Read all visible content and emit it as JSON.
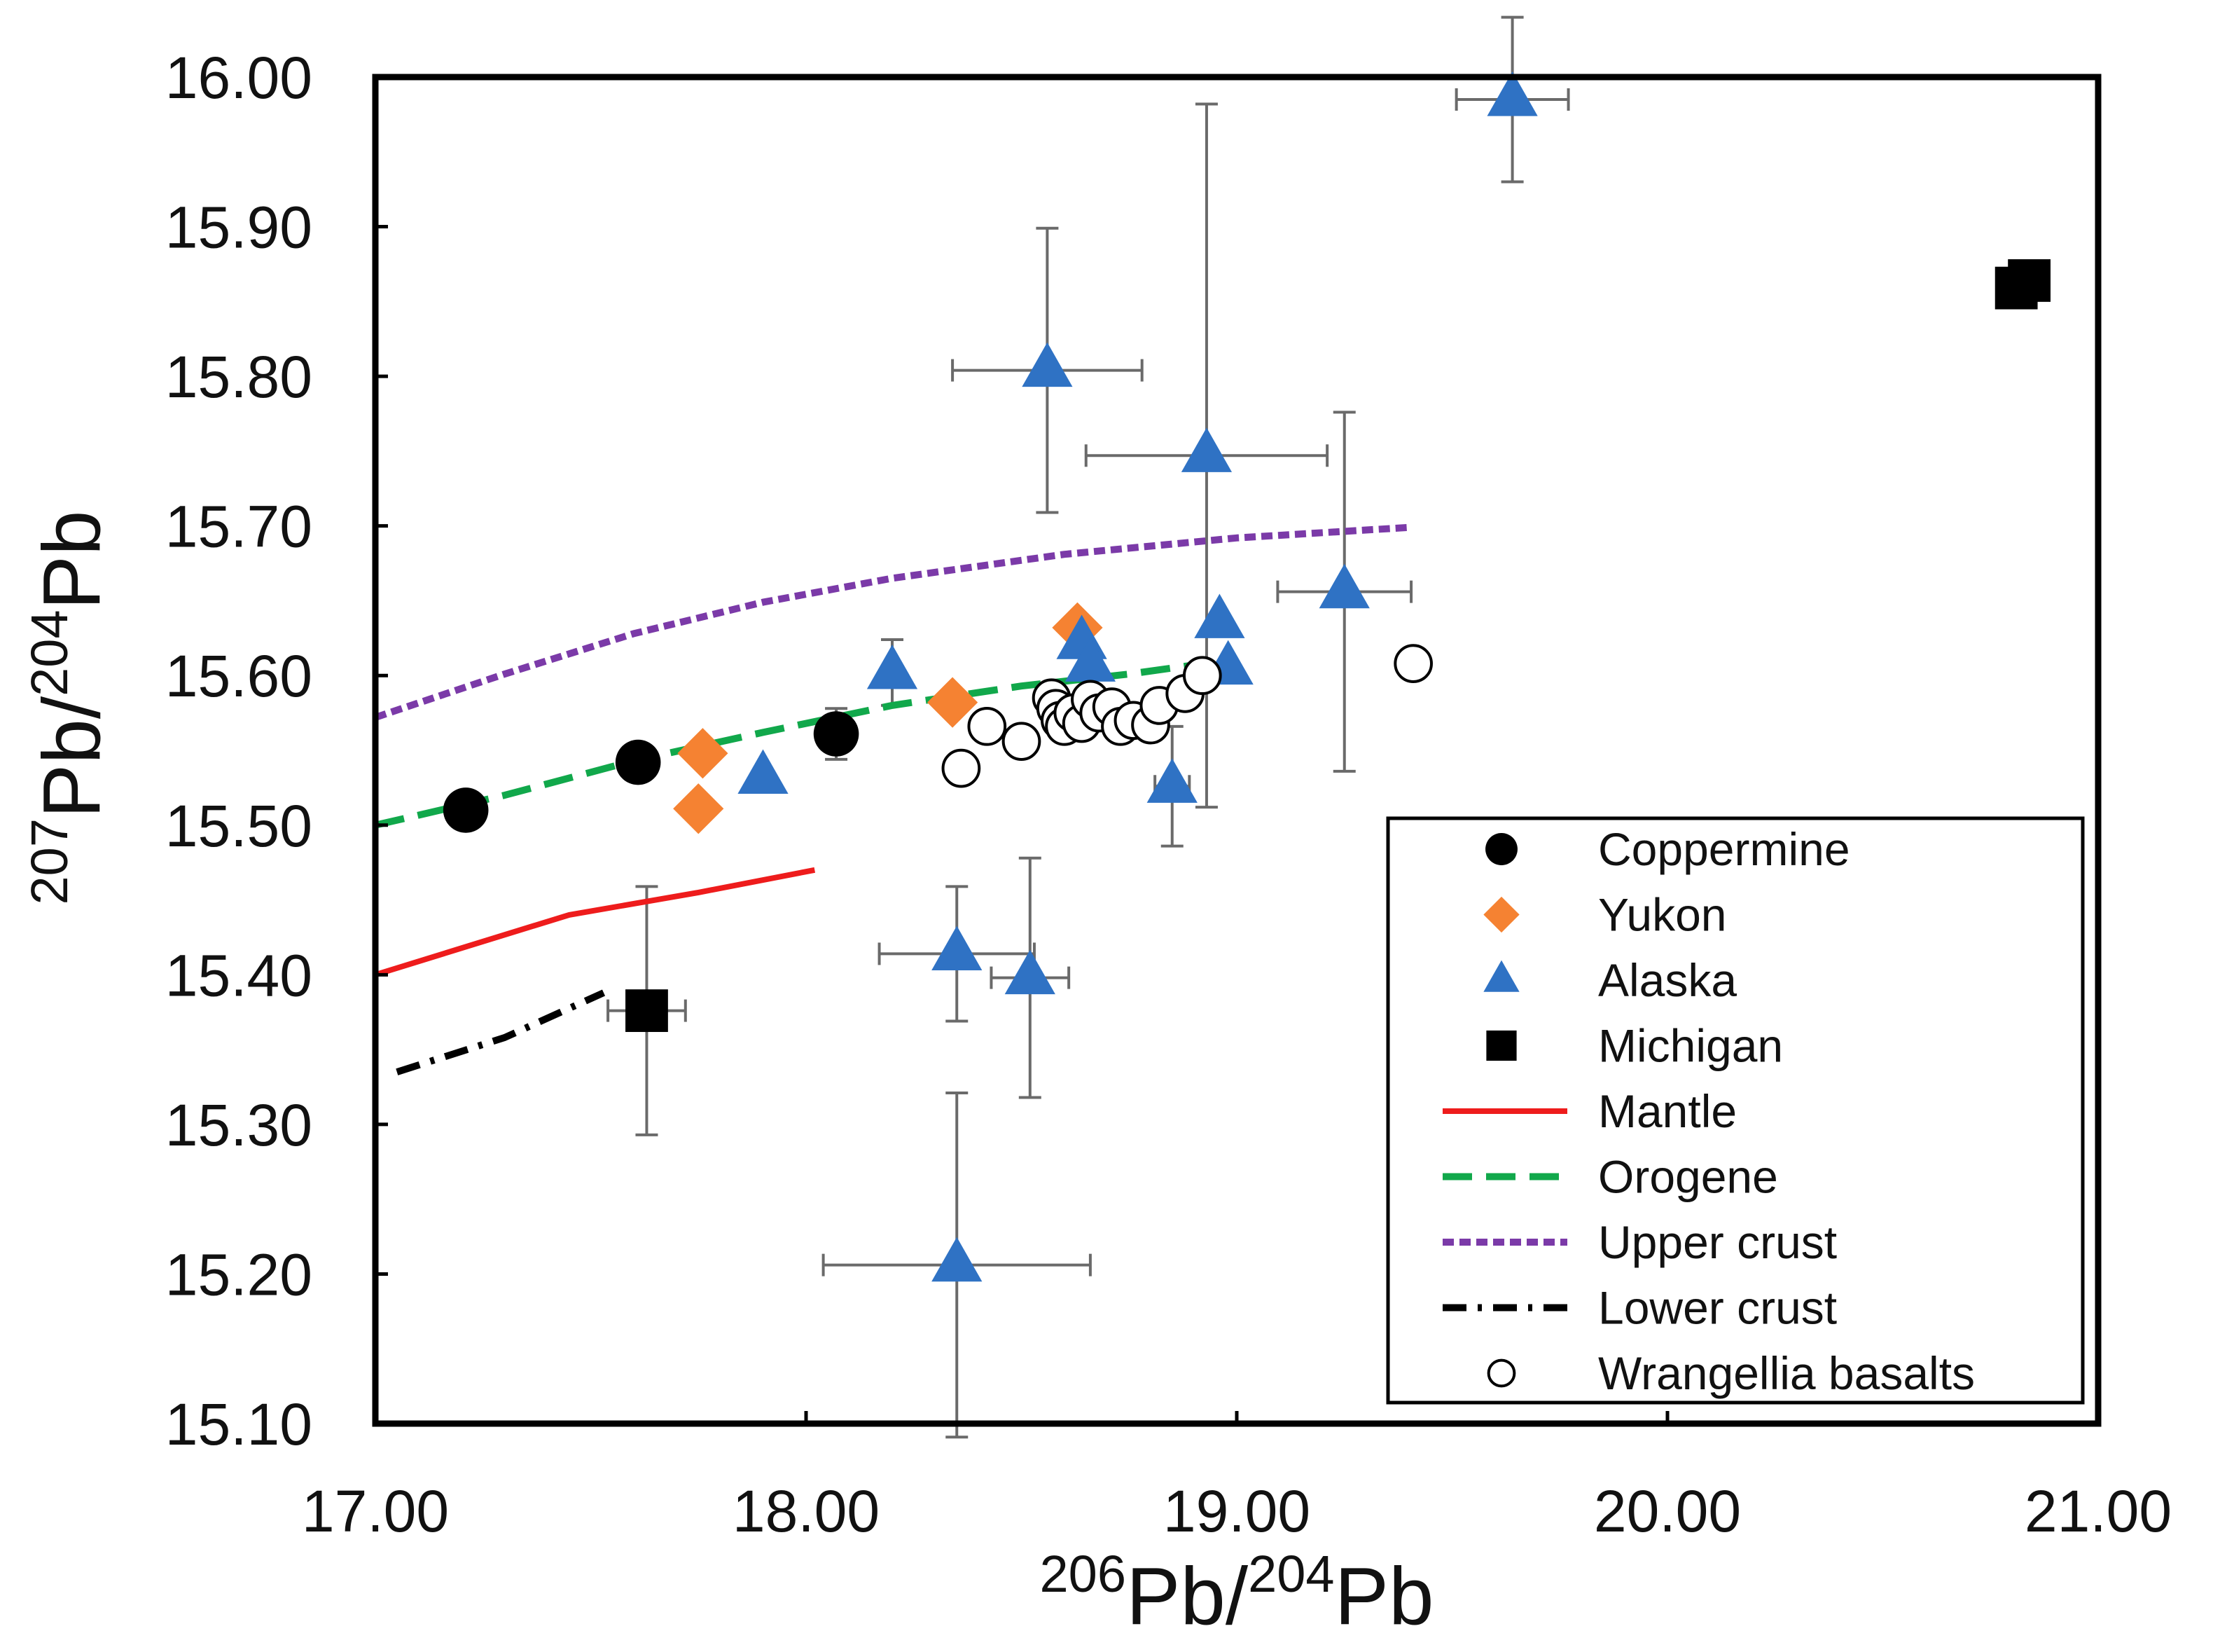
{
  "chart_data": {
    "type": "scatter",
    "title": "",
    "xlabel": {
      "sup1": "206",
      "base1": "Pb/",
      "sup2": "204",
      "base2": "Pb"
    },
    "ylabel": {
      "sup1": "207",
      "base1": "Pb/",
      "sup2": "204",
      "base2": "Pb"
    },
    "xlim": [
      17.0,
      21.0
    ],
    "ylim": [
      15.1,
      16.0
    ],
    "xticks": [
      "17.00",
      "18.00",
      "19.00",
      "20.00",
      "21.00"
    ],
    "yticks": [
      "15.10",
      "15.20",
      "15.30",
      "15.40",
      "15.50",
      "15.60",
      "15.70",
      "15.80",
      "15.90",
      "16.00"
    ],
    "legend_position": "bottom-right",
    "series": [
      {
        "name": "Coppermine",
        "kind": "points",
        "marker": "circle",
        "color": "#000000",
        "points": [
          {
            "x": 17.21,
            "y": 15.51
          },
          {
            "x": 17.61,
            "y": 15.542
          },
          {
            "x": 18.07,
            "y": 15.561,
            "yerr": 0.017
          }
        ]
      },
      {
        "name": "Yukon",
        "kind": "points",
        "marker": "diamond",
        "color": "#F58232",
        "points": [
          {
            "x": 17.76,
            "y": 15.548
          },
          {
            "x": 17.75,
            "y": 15.511
          },
          {
            "x": 18.34,
            "y": 15.582
          },
          {
            "x": 18.63,
            "y": 15.632
          }
        ]
      },
      {
        "name": "Alaska",
        "kind": "points",
        "marker": "triangle",
        "color": "#2F72C4",
        "points": [
          {
            "x": 19.64,
            "y": 15.985,
            "xerr": 0.13,
            "yerr": 0.055
          },
          {
            "x": 18.56,
            "y": 15.804,
            "xerr": 0.22,
            "yerr": 0.095
          },
          {
            "x": 18.93,
            "y": 15.747,
            "xerr": 0.28,
            "yerr": 0.235
          },
          {
            "x": 19.25,
            "y": 15.656,
            "xerr": 0.155,
            "yerr": 0.12
          },
          {
            "x": 18.96,
            "y": 15.636
          },
          {
            "x": 18.98,
            "y": 15.605
          },
          {
            "x": 18.64,
            "y": 15.622
          },
          {
            "x": 18.66,
            "y": 15.607
          },
          {
            "x": 18.2,
            "y": 15.602,
            "yerr": 0.022
          },
          {
            "x": 17.9,
            "y": 15.532
          },
          {
            "x": 18.85,
            "y": 15.526,
            "xerr": 0.04,
            "yerr": 0.04
          },
          {
            "x": 18.35,
            "y": 15.414,
            "xerr": 0.18,
            "yerr": 0.045
          },
          {
            "x": 18.52,
            "y": 15.398,
            "xerr": 0.09,
            "yerr": 0.08
          },
          {
            "x": 18.35,
            "y": 15.206,
            "xerr": 0.31,
            "yerr": 0.115
          }
        ]
      },
      {
        "name": "Michigan",
        "kind": "points",
        "marker": "square",
        "color": "#000000",
        "points": [
          {
            "x": 17.63,
            "y": 15.376,
            "xerr": 0.09,
            "yerr": 0.083
          },
          {
            "x": 20.81,
            "y": 15.859
          },
          {
            "x": 20.84,
            "y": 15.864
          }
        ]
      },
      {
        "name": "Mantle",
        "kind": "line",
        "style": "solid",
        "color": "#EE1C1C",
        "points": [
          {
            "x": 17.0,
            "y": 15.4
          },
          {
            "x": 17.45,
            "y": 15.44
          },
          {
            "x": 17.75,
            "y": 15.455
          },
          {
            "x": 18.02,
            "y": 15.47
          }
        ]
      },
      {
        "name": "Orogene",
        "kind": "line",
        "style": "dashed",
        "color": "#11A84B",
        "points": [
          {
            "x": 17.0,
            "y": 15.5
          },
          {
            "x": 17.3,
            "y": 15.52
          },
          {
            "x": 17.6,
            "y": 15.543
          },
          {
            "x": 17.9,
            "y": 15.562
          },
          {
            "x": 18.2,
            "y": 15.58
          },
          {
            "x": 18.5,
            "y": 15.593
          },
          {
            "x": 18.75,
            "y": 15.601
          },
          {
            "x": 18.95,
            "y": 15.609
          }
        ]
      },
      {
        "name": "Upper crust",
        "kind": "line",
        "style": "dotted",
        "color": "#7B3AA8",
        "points": [
          {
            "x": 17.0,
            "y": 15.572
          },
          {
            "x": 17.3,
            "y": 15.601
          },
          {
            "x": 17.6,
            "y": 15.628
          },
          {
            "x": 17.9,
            "y": 15.649
          },
          {
            "x": 18.2,
            "y": 15.665
          },
          {
            "x": 18.6,
            "y": 15.681
          },
          {
            "x": 19.0,
            "y": 15.692
          },
          {
            "x": 19.4,
            "y": 15.699
          }
        ]
      },
      {
        "name": "Lower crust",
        "kind": "line",
        "style": "dashdot",
        "color": "#000000",
        "points": [
          {
            "x": 17.05,
            "y": 15.335
          },
          {
            "x": 17.3,
            "y": 15.358
          },
          {
            "x": 17.53,
            "y": 15.388
          }
        ]
      },
      {
        "name": "Wrangellia basalts",
        "kind": "points",
        "marker": "open-circle",
        "color": "#000000",
        "points": [
          {
            "x": 18.36,
            "y": 15.538
          },
          {
            "x": 18.42,
            "y": 15.566
          },
          {
            "x": 18.5,
            "y": 15.556
          },
          {
            "x": 18.57,
            "y": 15.585
          },
          {
            "x": 18.58,
            "y": 15.578
          },
          {
            "x": 18.59,
            "y": 15.57
          },
          {
            "x": 18.6,
            "y": 15.566
          },
          {
            "x": 18.62,
            "y": 15.575
          },
          {
            "x": 18.64,
            "y": 15.568
          },
          {
            "x": 18.66,
            "y": 15.584
          },
          {
            "x": 18.68,
            "y": 15.575
          },
          {
            "x": 18.71,
            "y": 15.579
          },
          {
            "x": 18.73,
            "y": 15.566
          },
          {
            "x": 18.76,
            "y": 15.57
          },
          {
            "x": 18.8,
            "y": 15.567
          },
          {
            "x": 18.82,
            "y": 15.58
          },
          {
            "x": 18.88,
            "y": 15.588
          },
          {
            "x": 18.92,
            "y": 15.6
          },
          {
            "x": 19.41,
            "y": 15.608
          }
        ]
      }
    ]
  }
}
